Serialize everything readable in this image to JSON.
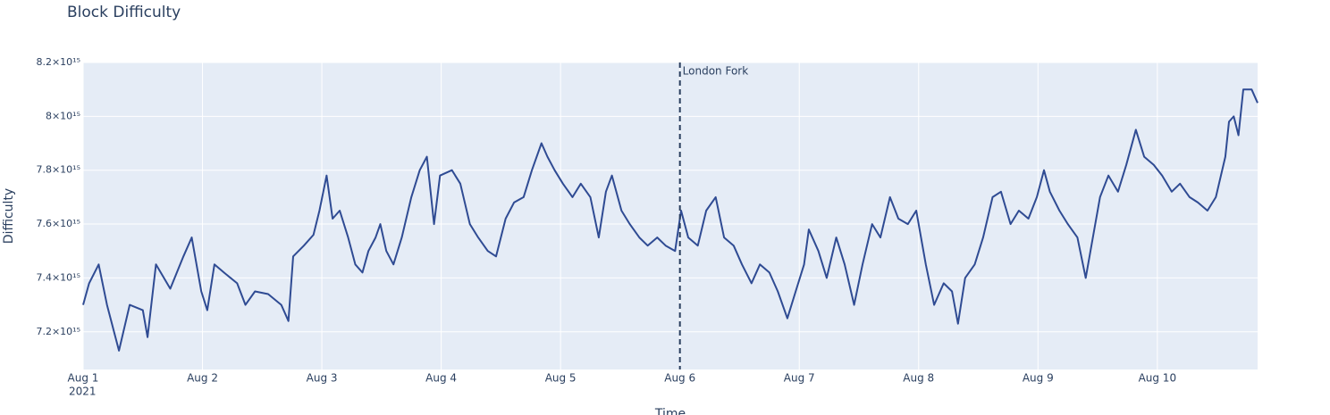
{
  "chart_data": {
    "type": "line",
    "title": "Block Difficulty",
    "x_label": "Time",
    "y_label": "Difficulty",
    "x_year": "2021",
    "color": "#2f4b93",
    "grid": true,
    "xlim": [
      0,
      9.84
    ],
    "xticks": [
      {
        "value": 0,
        "label": "Aug 1"
      },
      {
        "value": 1,
        "label": "Aug 2"
      },
      {
        "value": 2,
        "label": "Aug 3"
      },
      {
        "value": 3,
        "label": "Aug 4"
      },
      {
        "value": 4,
        "label": "Aug 5"
      },
      {
        "value": 5,
        "label": "Aug 6"
      },
      {
        "value": 6,
        "label": "Aug 7"
      },
      {
        "value": 7,
        "label": "Aug 8"
      },
      {
        "value": 8,
        "label": "Aug 9"
      },
      {
        "value": 9,
        "label": "Aug 10"
      }
    ],
    "ylim": [
      7060000000000000.0,
      8200000000000000.0
    ],
    "yticks": [
      {
        "value": 7200000000000000.0,
        "label": "7.2×10¹⁵"
      },
      {
        "value": 7400000000000000.0,
        "label": "7.4×10¹⁵"
      },
      {
        "value": 7600000000000000.0,
        "label": "7.6×10¹⁵"
      },
      {
        "value": 7800000000000000.0,
        "label": "7.8×10¹⁵"
      },
      {
        "value": 8000000000000000.0,
        "label": "8×10¹⁵"
      },
      {
        "value": 8200000000000000.0,
        "label": "8.2×10¹⁵"
      }
    ],
    "vline": {
      "x": 5,
      "text": "London Fork"
    },
    "x": [
      0,
      0.05,
      0.13,
      0.2,
      0.3,
      0.39,
      0.5,
      0.54,
      0.61,
      0.73,
      0.84,
      0.91,
      0.99,
      1.04,
      1.1,
      1.18,
      1.29,
      1.36,
      1.44,
      1.55,
      1.66,
      1.72,
      1.76,
      1.85,
      1.93,
      1.98,
      2.04,
      2.09,
      2.15,
      2.22,
      2.28,
      2.34,
      2.39,
      2.45,
      2.49,
      2.54,
      2.6,
      2.67,
      2.75,
      2.82,
      2.88,
      2.94,
      2.99,
      3.09,
      3.16,
      3.24,
      3.31,
      3.39,
      3.46,
      3.54,
      3.61,
      3.69,
      3.76,
      3.84,
      3.89,
      3.95,
      4.02,
      4.1,
      4.17,
      4.25,
      4.32,
      4.38,
      4.43,
      4.51,
      4.58,
      4.66,
      4.73,
      4.81,
      4.88,
      4.96,
      5.01,
      5.07,
      5.15,
      5.22,
      5.3,
      5.37,
      5.45,
      5.52,
      5.6,
      5.67,
      5.75,
      5.82,
      5.9,
      5.97,
      6.04,
      6.08,
      6.16,
      6.23,
      6.31,
      6.38,
      6.46,
      6.53,
      6.61,
      6.68,
      6.76,
      6.83,
      6.91,
      6.98,
      7.06,
      7.13,
      7.21,
      7.28,
      7.33,
      7.39,
      7.47,
      7.54,
      7.62,
      7.69,
      7.77,
      7.84,
      7.92,
      7.99,
      8.05,
      8.1,
      8.18,
      8.25,
      8.33,
      8.4,
      8.46,
      8.52,
      8.59,
      8.67,
      8.74,
      8.82,
      8.89,
      8.97,
      9.04,
      9.12,
      9.19,
      9.27,
      9.34,
      9.42,
      9.49,
      9.57,
      9.6,
      9.64,
      9.68,
      9.72,
      9.79,
      9.84
    ],
    "values": [
      7300000000000000.0,
      7380000000000000.0,
      7450000000000000.0,
      7300000000000000.0,
      7130000000000000.0,
      7300000000000000.0,
      7280000000000000.0,
      7180000000000000.0,
      7450000000000000.0,
      7360000000000000.0,
      7480000000000000.0,
      7550000000000000.0,
      7350000000000000.0,
      7280000000000000.0,
      7450000000000000.0,
      7420000000000000.0,
      7380000000000000.0,
      7300000000000000.0,
      7350000000000000.0,
      7340000000000000.0,
      7300000000000000.0,
      7240000000000000.0,
      7480000000000000.0,
      7520000000000000.0,
      7560000000000000.0,
      7650000000000000.0,
      7780000000000000.0,
      7620000000000000.0,
      7650000000000000.0,
      7550000000000000.0,
      7450000000000000.0,
      7420000000000000.0,
      7500000000000000.0,
      7550000000000000.0,
      7600000000000000.0,
      7500000000000000.0,
      7450000000000000.0,
      7550000000000000.0,
      7700000000000000.0,
      7800000000000000.0,
      7850000000000000.0,
      7600000000000000.0,
      7780000000000000.0,
      7800000000000000.0,
      7750000000000000.0,
      7600000000000000.0,
      7550000000000000.0,
      7500000000000000.0,
      7480000000000000.0,
      7620000000000000.0,
      7680000000000000.0,
      7700000000000000.0,
      7800000000000000.0,
      7900000000000000.0,
      7850000000000000.0,
      7800000000000000.0,
      7750000000000000.0,
      7700000000000000.0,
      7750000000000000.0,
      7700000000000000.0,
      7550000000000000.0,
      7720000000000000.0,
      7780000000000000.0,
      7650000000000000.0,
      7600000000000000.0,
      7550000000000000.0,
      7520000000000000.0,
      7550000000000000.0,
      7520000000000000.0,
      7500000000000000.0,
      7650000000000000.0,
      7550000000000000.0,
      7520000000000000.0,
      7650000000000000.0,
      7700000000000000.0,
      7550000000000000.0,
      7520000000000000.0,
      7450000000000000.0,
      7380000000000000.0,
      7450000000000000.0,
      7420000000000000.0,
      7350000000000000.0,
      7250000000000000.0,
      7350000000000000.0,
      7450000000000000.0,
      7580000000000000.0,
      7500000000000000.0,
      7400000000000000.0,
      7550000000000000.0,
      7450000000000000.0,
      7300000000000000.0,
      7450000000000000.0,
      7600000000000000.0,
      7550000000000000.0,
      7700000000000000.0,
      7620000000000000.0,
      7600000000000000.0,
      7650000000000000.0,
      7450000000000000.0,
      7300000000000000.0,
      7380000000000000.0,
      7350000000000000.0,
      7230000000000000.0,
      7400000000000000.0,
      7450000000000000.0,
      7550000000000000.0,
      7700000000000000.0,
      7720000000000000.0,
      7600000000000000.0,
      7650000000000000.0,
      7620000000000000.0,
      7700000000000000.0,
      7800000000000000.0,
      7720000000000000.0,
      7650000000000000.0,
      7600000000000000.0,
      7550000000000000.0,
      7400000000000000.0,
      7550000000000000.0,
      7700000000000000.0,
      7780000000000000.0,
      7720000000000000.0,
      7820000000000000.0,
      7950000000000000.0,
      7850000000000000.0,
      7820000000000000.0,
      7780000000000000.0,
      7720000000000000.0,
      7750000000000000.0,
      7700000000000000.0,
      7680000000000000.0,
      7650000000000000.0,
      7700000000000000.0,
      7850000000000000.0,
      7980000000000000.0,
      8000000000000000.0,
      7930000000000000.0,
      8100000000000000.0,
      8100000000000000.0,
      8050000000000000.0
    ]
  }
}
